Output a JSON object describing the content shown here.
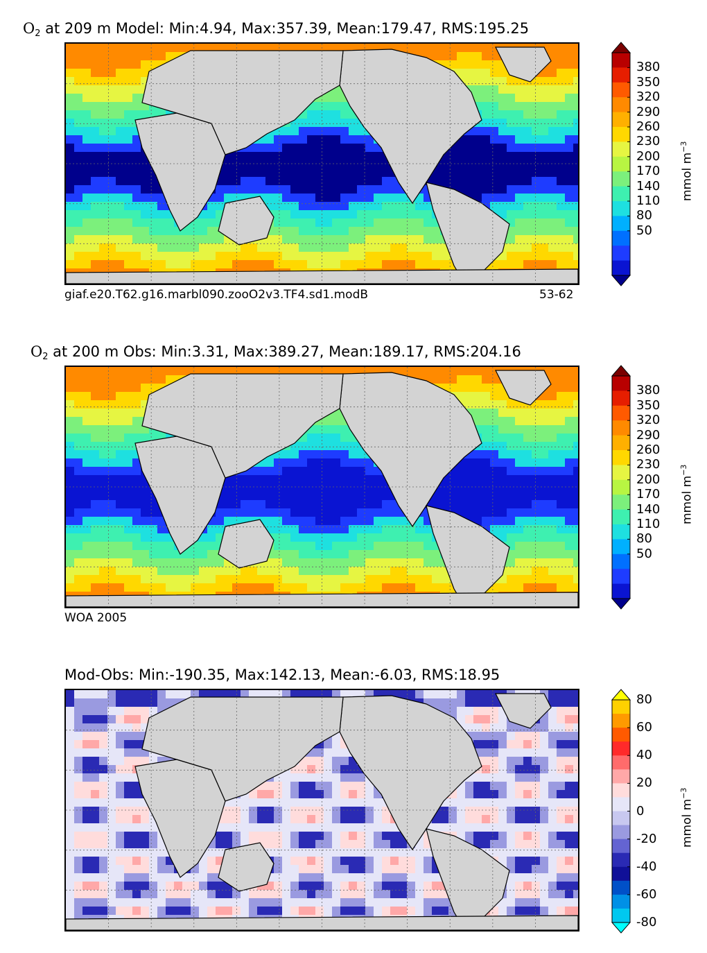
{
  "figure": {
    "panels": [
      {
        "o2_symbol": "O",
        "o2_sub": "2",
        "title_rest": " at 209 m Model: Min:4.94, Max:357.39, Mean:179.47, RMS:195.25",
        "note_left": "giaf.e20.T62.g16.marbl090.zooO2v3.TF4.sd1.modB",
        "note_right": "53-62",
        "colorbar": {
          "ticks": [
            "380",
            "350",
            "320",
            "290",
            "260",
            "230",
            "200",
            "170",
            "140",
            "110",
            "80",
            "50"
          ],
          "colors": [
            "#7a0000",
            "#b80000",
            "#e61e00",
            "#ff5a00",
            "#ff8a00",
            "#ffb000",
            "#ffd800",
            "#e6f542",
            "#b8f542",
            "#7cf07c",
            "#3ef0b0",
            "#1ee0e0",
            "#00b0ff",
            "#0070ff",
            "#1e3cff",
            "#0a14d2",
            "#00008c"
          ],
          "unit": "mmol m",
          "unit_exp": "−3"
        }
      },
      {
        "o2_symbol": "O",
        "o2_sub": "2",
        "title_rest": " at 200 m Obs: Min:3.31, Max:389.27, Mean:189.17, RMS:204.16",
        "note_left": "WOA 2005",
        "note_right": "",
        "colorbar": {
          "ticks": [
            "380",
            "350",
            "320",
            "290",
            "260",
            "230",
            "200",
            "170",
            "140",
            "110",
            "80",
            "50"
          ],
          "colors": [
            "#7a0000",
            "#b80000",
            "#e61e00",
            "#ff5a00",
            "#ff8a00",
            "#ffb000",
            "#ffd800",
            "#e6f542",
            "#b8f542",
            "#7cf07c",
            "#3ef0b0",
            "#1ee0e0",
            "#00b0ff",
            "#0070ff",
            "#1e3cff",
            "#0a14d2",
            "#00008c"
          ],
          "unit": "mmol m",
          "unit_exp": "−3"
        }
      },
      {
        "o2_symbol": "",
        "o2_sub": "",
        "title_rest": "Mod-Obs: Min:-190.35, Max:142.13, Mean:-6.03, RMS:18.95",
        "note_left": "",
        "note_right": "",
        "colorbar": {
          "ticks": [
            "80",
            "60",
            "40",
            "20",
            "0",
            "-20",
            "-40",
            "-60",
            "-80"
          ],
          "colors": [
            "#ffff00",
            "#ffd000",
            "#ff9a00",
            "#ff5a00",
            "#ff2a2a",
            "#ff6b6b",
            "#ffa8a8",
            "#ffdcdc",
            "#e6e6f8",
            "#c8c8f0",
            "#9a9ae0",
            "#6464d2",
            "#2a2ab4",
            "#101098",
            "#0050c8",
            "#0090e6",
            "#00c8f0",
            "#00ffff"
          ],
          "unit": "mmol m",
          "unit_exp": "−3"
        }
      }
    ]
  },
  "chart_data": [
    {
      "type": "heatmap",
      "title": "O2 at 209 m Model: Min:4.94, Max:357.39, Mean:179.47, RMS:195.25",
      "variable": "O2",
      "depth_m": 209,
      "source": "Model",
      "stats": {
        "min": 4.94,
        "max": 357.39,
        "mean": 179.47,
        "rms": 195.25
      },
      "colorbar_ticks": [
        50,
        80,
        110,
        140,
        170,
        200,
        230,
        260,
        290,
        320,
        350,
        380
      ],
      "colorbar_extend": "both",
      "unit": "mmol m^-3",
      "grid": true
    },
    {
      "type": "heatmap",
      "title": "O2 at 200 m Obs: Min:3.31, Max:389.27, Mean:189.17, RMS:204.16",
      "variable": "O2",
      "depth_m": 200,
      "source": "Obs",
      "stats": {
        "min": 3.31,
        "max": 389.27,
        "mean": 189.17,
        "rms": 204.16
      },
      "colorbar_ticks": [
        50,
        80,
        110,
        140,
        170,
        200,
        230,
        260,
        290,
        320,
        350,
        380
      ],
      "colorbar_extend": "both",
      "unit": "mmol m^-3",
      "grid": true
    },
    {
      "type": "heatmap",
      "title": "Mod-Obs: Min:-190.35, Max:142.13, Mean:-6.03, RMS:18.95",
      "source": "Mod-Obs",
      "stats": {
        "min": -190.35,
        "max": 142.13,
        "mean": -6.03,
        "rms": 18.95
      },
      "colorbar_ticks": [
        -80,
        -60,
        -40,
        -20,
        0,
        20,
        40,
        60,
        80
      ],
      "colorbar_extend": "both",
      "unit": "mmol m^-3",
      "grid": true
    }
  ]
}
